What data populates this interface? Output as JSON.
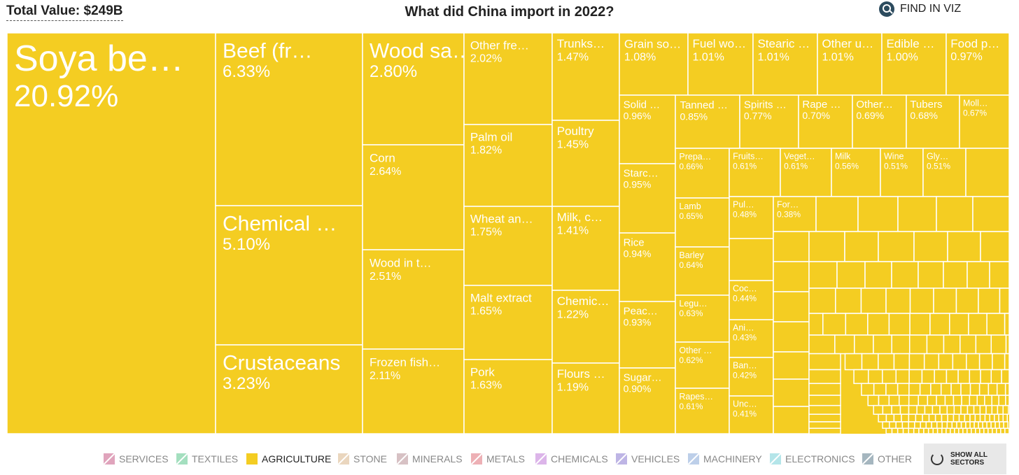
{
  "header": {
    "total_label": "Total Value: $249B",
    "title": "What did China import in 2022?",
    "find_label": "FIND IN VIZ"
  },
  "colors": {
    "agriculture": "#f4cd22",
    "tile_border": "#ffffff",
    "label": "#ffffff"
  },
  "chart_data": {
    "type": "treemap",
    "title": "What did China import in 2022?",
    "total": "$249B",
    "sector": "Agriculture",
    "units": "percent of total",
    "items": [
      {
        "name": "Soya be…",
        "value": 20.92,
        "label": "20.92%"
      },
      {
        "name": "Beef (fr…",
        "value": 6.33,
        "label": "6.33%"
      },
      {
        "name": "Chemical …",
        "value": 5.1,
        "label": "5.10%"
      },
      {
        "name": "Crustaceans",
        "value": 3.23,
        "label": "3.23%"
      },
      {
        "name": "Wood sa…",
        "value": 2.8,
        "label": "2.80%"
      },
      {
        "name": "Corn",
        "value": 2.64,
        "label": "2.64%"
      },
      {
        "name": "Wood in t…",
        "value": 2.51,
        "label": "2.51%"
      },
      {
        "name": "Frozen fish…",
        "value": 2.11,
        "label": "2.11%"
      },
      {
        "name": "Other fre…",
        "value": 2.02,
        "label": "2.02%"
      },
      {
        "name": "Palm oil",
        "value": 1.82,
        "label": "1.82%"
      },
      {
        "name": "Wheat an…",
        "value": 1.75,
        "label": "1.75%"
      },
      {
        "name": "Malt extract",
        "value": 1.65,
        "label": "1.65%"
      },
      {
        "name": "Pork",
        "value": 1.63,
        "label": "1.63%"
      },
      {
        "name": "Trunks…",
        "value": 1.47,
        "label": "1.47%"
      },
      {
        "name": "Poultry",
        "value": 1.45,
        "label": "1.45%"
      },
      {
        "name": "Milk, c…",
        "value": 1.41,
        "label": "1.41%"
      },
      {
        "name": "Chemic…",
        "value": 1.22,
        "label": "1.22%"
      },
      {
        "name": "Flours …",
        "value": 1.19,
        "label": "1.19%"
      },
      {
        "name": "Grain so…",
        "value": 1.08,
        "label": "1.08%"
      },
      {
        "name": "Fuel wo…",
        "value": 1.01,
        "label": "1.01%"
      },
      {
        "name": "Stearic …",
        "value": 1.01,
        "label": "1.01%"
      },
      {
        "name": "Other u…",
        "value": 1.01,
        "label": "1.01%"
      },
      {
        "name": "Edible …",
        "value": 1.0,
        "label": "1.00%"
      },
      {
        "name": "Food p…",
        "value": 0.97,
        "label": "0.97%"
      },
      {
        "name": "Solid …",
        "value": 0.96,
        "label": "0.96%"
      },
      {
        "name": "Starc…",
        "value": 0.95,
        "label": "0.95%"
      },
      {
        "name": "Rice",
        "value": 0.94,
        "label": "0.94%"
      },
      {
        "name": "Peac…",
        "value": 0.93,
        "label": "0.93%"
      },
      {
        "name": "Sugar…",
        "value": 0.9,
        "label": "0.90%"
      },
      {
        "name": "Tanned …",
        "value": 0.85,
        "label": "0.85%"
      },
      {
        "name": "Spirits …",
        "value": 0.77,
        "label": "0.77%"
      },
      {
        "name": "Rape …",
        "value": 0.7,
        "label": "0.70%"
      },
      {
        "name": "Other…",
        "value": 0.69,
        "label": "0.69%"
      },
      {
        "name": "Tubers",
        "value": 0.68,
        "label": "0.68%"
      },
      {
        "name": "Moll…",
        "value": 0.67,
        "label": "0.67%"
      },
      {
        "name": "Prepa…",
        "value": 0.66,
        "label": "0.66%"
      },
      {
        "name": "Lamb",
        "value": 0.65,
        "label": "0.65%"
      },
      {
        "name": "Barley",
        "value": 0.64,
        "label": "0.64%"
      },
      {
        "name": "Legu…",
        "value": 0.63,
        "label": "0.63%"
      },
      {
        "name": "Other …",
        "value": 0.62,
        "label": "0.62%"
      },
      {
        "name": "Rapes…",
        "value": 0.61,
        "label": "0.61%"
      },
      {
        "name": "Fruits…",
        "value": 0.61,
        "label": "0.61%"
      },
      {
        "name": "Veget…",
        "value": 0.61,
        "label": "0.61%"
      },
      {
        "name": "Milk",
        "value": 0.56,
        "label": "0.56%"
      },
      {
        "name": "Wine",
        "value": 0.51,
        "label": "0.51%"
      },
      {
        "name": "Gly…",
        "value": 0.51,
        "label": "0.51%"
      },
      {
        "name": "Pul…",
        "value": 0.48,
        "label": "0.48%"
      },
      {
        "name": "For…",
        "value": 0.38,
        "label": "0.38%"
      },
      {
        "name": "Coc…",
        "value": 0.44,
        "label": "0.44%"
      },
      {
        "name": "Ani…",
        "value": 0.43,
        "label": "0.43%"
      },
      {
        "name": "Ban…",
        "value": 0.42,
        "label": "0.42%"
      },
      {
        "name": "Unc…",
        "value": 0.41,
        "label": "0.41%"
      }
    ]
  },
  "legend": {
    "items": [
      {
        "label": "SERVICES",
        "color": "#c85a86"
      },
      {
        "label": "TEXTILES",
        "color": "#5bc58c"
      },
      {
        "label": "AGRICULTURE",
        "color": "#f4cd22"
      },
      {
        "label": "STONE",
        "color": "#d9b68a"
      },
      {
        "label": "MINERALS",
        "color": "#b89094"
      },
      {
        "label": "METALS",
        "color": "#e0707a"
      },
      {
        "label": "CHEMICALS",
        "color": "#c07ad8"
      },
      {
        "label": "VEHICLES",
        "color": "#8a7ad0"
      },
      {
        "label": "MACHINERY",
        "color": "#88a8d8"
      },
      {
        "label": "ELECTRONICS",
        "color": "#78d0d8"
      },
      {
        "label": "OTHER",
        "color": "#5d7c8c"
      }
    ],
    "active": "AGRICULTURE",
    "show_all_label": "SHOW ALL SECTORS"
  }
}
